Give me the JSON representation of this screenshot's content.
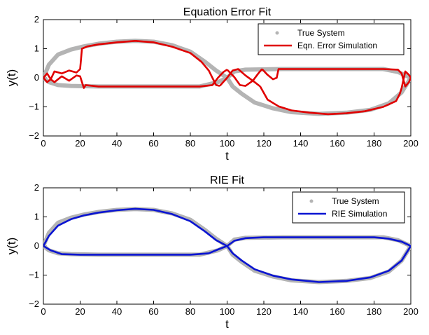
{
  "chart_data": [
    {
      "type": "line",
      "title": "Equation Error Fit",
      "xlabel": "t",
      "ylabel": "y(t)",
      "xlim": [
        0,
        200
      ],
      "ylim": [
        -2,
        2
      ],
      "xticks": [
        "0",
        "20",
        "40",
        "60",
        "80",
        "100",
        "120",
        "140",
        "160",
        "180",
        "200"
      ],
      "yticks": [
        "2",
        "1",
        "0",
        "−1",
        "−2"
      ],
      "legend_placement": "top-right",
      "colors": {
        "true_system": "#b4b4b4",
        "simulation": "#e00000"
      },
      "series": [
        {
          "name": "True System",
          "style": "points",
          "curves": [
            [
              [
                0,
                0
              ],
              [
                3,
                0.45
              ],
              [
                8,
                0.8
              ],
              [
                15,
                0.97
              ],
              [
                22,
                1.08
              ],
              [
                30,
                1.17
              ],
              [
                40,
                1.24
              ],
              [
                50,
                1.27
              ],
              [
                60,
                1.24
              ],
              [
                70,
                1.12
              ],
              [
                80,
                0.9
              ],
              [
                88,
                0.55
              ],
              [
                94,
                0.25
              ],
              [
                100,
                0
              ]
            ],
            [
              [
                0,
                0
              ],
              [
                3,
                -0.15
              ],
              [
                8,
                -0.25
              ],
              [
                15,
                -0.28
              ],
              [
                30,
                -0.3
              ],
              [
                50,
                -0.3
              ],
              [
                70,
                -0.3
              ],
              [
                85,
                -0.3
              ],
              [
                95,
                -0.15
              ],
              [
                100,
                0
              ]
            ],
            [
              [
                100,
                0
              ],
              [
                104,
                0.22
              ],
              [
                110,
                0.28
              ],
              [
                130,
                0.3
              ],
              [
                150,
                0.3
              ],
              [
                170,
                0.3
              ],
              [
                185,
                0.3
              ],
              [
                193,
                0.2
              ],
              [
                200,
                0
              ]
            ],
            [
              [
                100,
                0
              ],
              [
                103,
                -0.3
              ],
              [
                108,
                -0.55
              ],
              [
                115,
                -0.85
              ],
              [
                125,
                -1.05
              ],
              [
                135,
                -1.18
              ],
              [
                150,
                -1.24
              ],
              [
                165,
                -1.2
              ],
              [
                178,
                -1.1
              ],
              [
                188,
                -0.88
              ],
              [
                195,
                -0.5
              ],
              [
                200,
                0
              ]
            ]
          ]
        },
        {
          "name": "Eqn. Error Simulation",
          "style": "line",
          "curves": [
            [
              [
                0,
                0
              ],
              [
                2,
                -0.15
              ],
              [
                4,
                -0.05
              ],
              [
                6,
                0.22
              ],
              [
                10,
                0.15
              ],
              [
                14,
                0.25
              ],
              [
                18,
                0.18
              ],
              [
                20,
                0.3
              ],
              [
                21,
                1.0
              ],
              [
                24,
                1.08
              ],
              [
                30,
                1.15
              ],
              [
                40,
                1.22
              ],
              [
                50,
                1.27
              ],
              [
                60,
                1.22
              ],
              [
                70,
                1.07
              ],
              [
                80,
                0.85
              ],
              [
                86,
                0.55
              ],
              [
                90,
                0.25
              ],
              [
                92,
                0.0
              ],
              [
                94,
                -0.25
              ],
              [
                96,
                -0.28
              ]
            ],
            [
              [
                0,
                0
              ],
              [
                2,
                0.15
              ],
              [
                4,
                -0.05
              ],
              [
                6,
                -0.15
              ],
              [
                10,
                0.05
              ],
              [
                14,
                -0.1
              ],
              [
                18,
                0.08
              ],
              [
                20,
                0.05
              ],
              [
                21,
                -0.15
              ],
              [
                22,
                -0.35
              ],
              [
                23,
                -0.25
              ],
              [
                30,
                -0.3
              ],
              [
                50,
                -0.3
              ],
              [
                70,
                -0.3
              ],
              [
                85,
                -0.3
              ],
              [
                92,
                -0.25
              ],
              [
                95,
                0.0
              ],
              [
                98,
                0.2
              ],
              [
                100,
                0.28
              ]
            ],
            [
              [
                96,
                -0.28
              ],
              [
                100,
                0.0
              ],
              [
                103,
                0.25
              ],
              [
                106,
                0.3
              ],
              [
                110,
                0.08
              ],
              [
                115,
                -0.15
              ],
              [
                118,
                -0.3
              ]
            ],
            [
              [
                100,
                0.28
              ],
              [
                104,
                0.02
              ],
              [
                107,
                -0.25
              ],
              [
                110,
                -0.28
              ],
              [
                114,
                -0.1
              ],
              [
                117,
                0.15
              ],
              [
                119,
                0.3
              ]
            ],
            [
              [
                118,
                -0.3
              ],
              [
                122,
                -0.75
              ],
              [
                128,
                -0.98
              ],
              [
                135,
                -1.12
              ],
              [
                145,
                -1.2
              ],
              [
                155,
                -1.25
              ],
              [
                165,
                -1.22
              ],
              [
                175,
                -1.15
              ],
              [
                185,
                -1.0
              ],
              [
                192,
                -0.8
              ],
              [
                194,
                -0.55
              ],
              [
                195,
                -0.35
              ],
              [
                197,
                0.22
              ],
              [
                199,
                0.1
              ],
              [
                200,
                0
              ]
            ],
            [
              [
                119,
                0.3
              ],
              [
                122,
                0.1
              ],
              [
                125,
                -0.05
              ],
              [
                127,
                0.0
              ],
              [
                128,
                0.3
              ],
              [
                135,
                0.3
              ],
              [
                150,
                0.3
              ],
              [
                170,
                0.3
              ],
              [
                185,
                0.3
              ],
              [
                193,
                0.28
              ],
              [
                195,
                0.15
              ],
              [
                197,
                -0.3
              ],
              [
                199,
                -0.15
              ],
              [
                200,
                0
              ]
            ]
          ]
        }
      ]
    },
    {
      "type": "line",
      "title": "RIE  Fit",
      "xlabel": "t",
      "ylabel": "y(t)",
      "xlim": [
        0,
        200
      ],
      "ylim": [
        -2,
        2
      ],
      "xticks": [
        "0",
        "20",
        "40",
        "60",
        "80",
        "100",
        "120",
        "140",
        "160",
        "180",
        "200"
      ],
      "yticks": [
        "2",
        "1",
        "0",
        "−1",
        "−2"
      ],
      "legend_placement": "top-right",
      "colors": {
        "true_system": "#b4b4b4",
        "simulation": "#0a14d2"
      },
      "series": [
        {
          "name": "True System",
          "style": "points",
          "curves": [
            [
              [
                0,
                0
              ],
              [
                3,
                0.45
              ],
              [
                8,
                0.8
              ],
              [
                15,
                0.97
              ],
              [
                22,
                1.08
              ],
              [
                30,
                1.17
              ],
              [
                40,
                1.24
              ],
              [
                50,
                1.27
              ],
              [
                60,
                1.24
              ],
              [
                70,
                1.12
              ],
              [
                80,
                0.9
              ],
              [
                88,
                0.55
              ],
              [
                94,
                0.25
              ],
              [
                100,
                0
              ]
            ],
            [
              [
                0,
                0
              ],
              [
                3,
                -0.15
              ],
              [
                8,
                -0.25
              ],
              [
                15,
                -0.28
              ],
              [
                30,
                -0.3
              ],
              [
                50,
                -0.3
              ],
              [
                70,
                -0.3
              ],
              [
                85,
                -0.3
              ],
              [
                95,
                -0.15
              ],
              [
                100,
                0
              ]
            ],
            [
              [
                100,
                0
              ],
              [
                104,
                0.22
              ],
              [
                110,
                0.28
              ],
              [
                130,
                0.3
              ],
              [
                150,
                0.3
              ],
              [
                170,
                0.3
              ],
              [
                185,
                0.3
              ],
              [
                193,
                0.2
              ],
              [
                200,
                0
              ]
            ],
            [
              [
                100,
                0
              ],
              [
                103,
                -0.3
              ],
              [
                108,
                -0.55
              ],
              [
                115,
                -0.85
              ],
              [
                125,
                -1.05
              ],
              [
                135,
                -1.18
              ],
              [
                150,
                -1.24
              ],
              [
                165,
                -1.2
              ],
              [
                178,
                -1.1
              ],
              [
                188,
                -0.88
              ],
              [
                195,
                -0.5
              ],
              [
                200,
                0
              ]
            ]
          ]
        },
        {
          "name": "RIE Simulation",
          "style": "line",
          "curves": [
            [
              [
                0,
                0
              ],
              [
                3,
                0.35
              ],
              [
                8,
                0.7
              ],
              [
                15,
                0.92
              ],
              [
                22,
                1.05
              ],
              [
                30,
                1.15
              ],
              [
                40,
                1.23
              ],
              [
                50,
                1.28
              ],
              [
                60,
                1.24
              ],
              [
                70,
                1.1
              ],
              [
                80,
                0.85
              ],
              [
                88,
                0.5
              ],
              [
                94,
                0.2
              ],
              [
                100,
                0
              ]
            ],
            [
              [
                0,
                0
              ],
              [
                4,
                -0.15
              ],
              [
                10,
                -0.28
              ],
              [
                20,
                -0.3
              ],
              [
                40,
                -0.3
              ],
              [
                60,
                -0.3
              ],
              [
                80,
                -0.3
              ],
              [
                90,
                -0.25
              ],
              [
                95,
                -0.12
              ],
              [
                100,
                0
              ]
            ],
            [
              [
                100,
                0
              ],
              [
                104,
                0.18
              ],
              [
                110,
                0.27
              ],
              [
                120,
                0.3
              ],
              [
                140,
                0.3
              ],
              [
                160,
                0.3
              ],
              [
                180,
                0.3
              ],
              [
                188,
                0.25
              ],
              [
                195,
                0.15
              ],
              [
                200,
                0
              ]
            ],
            [
              [
                100,
                0
              ],
              [
                103,
                -0.25
              ],
              [
                108,
                -0.5
              ],
              [
                115,
                -0.8
              ],
              [
                125,
                -1.02
              ],
              [
                135,
                -1.15
              ],
              [
                150,
                -1.24
              ],
              [
                165,
                -1.2
              ],
              [
                178,
                -1.08
              ],
              [
                188,
                -0.85
              ],
              [
                195,
                -0.5
              ],
              [
                200,
                0
              ]
            ]
          ]
        }
      ]
    }
  ]
}
